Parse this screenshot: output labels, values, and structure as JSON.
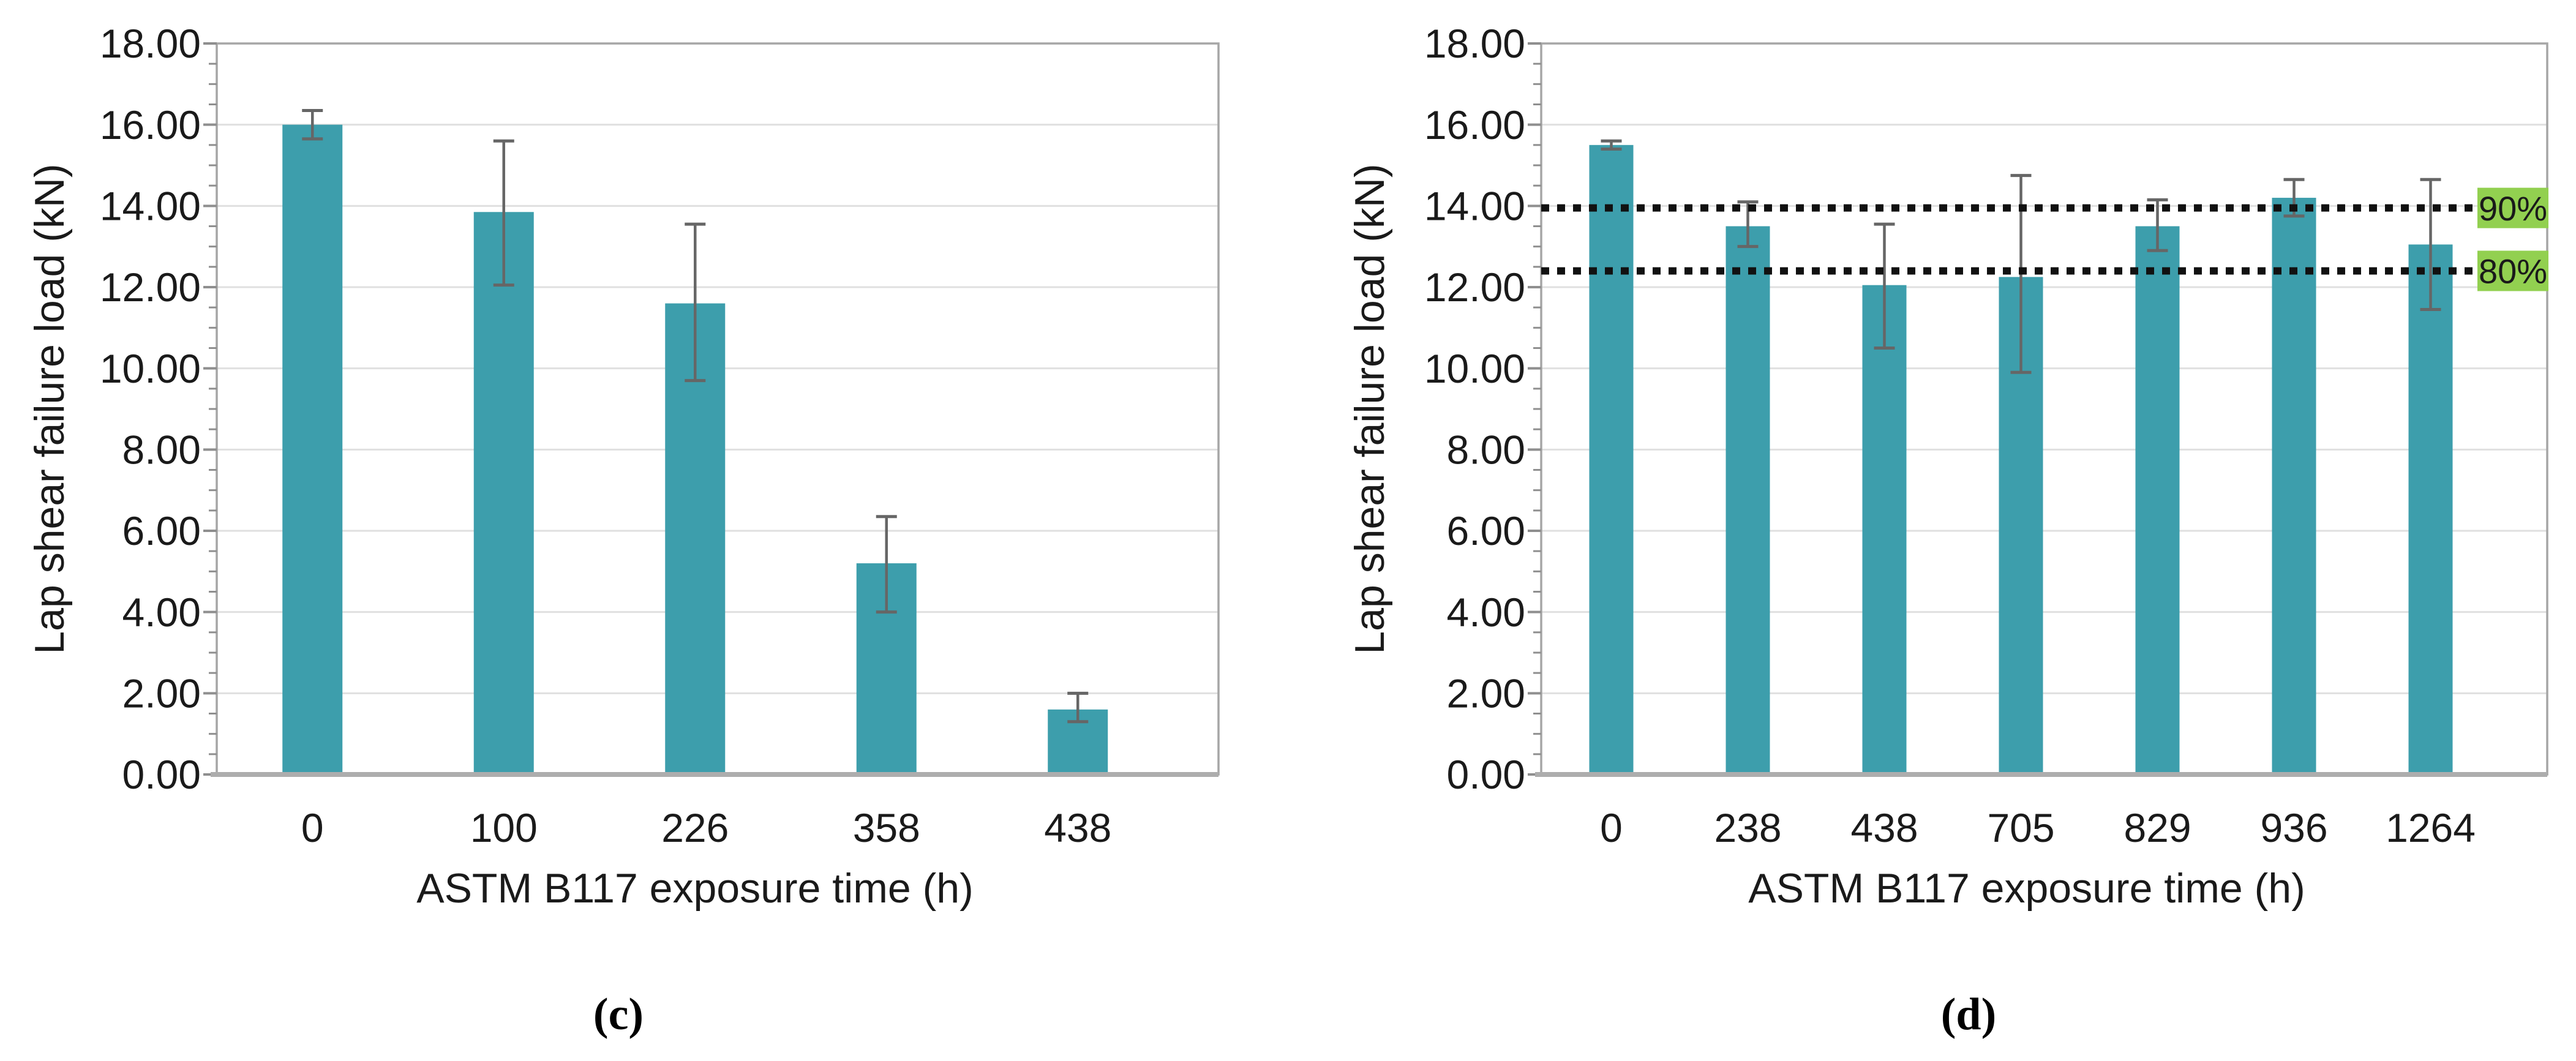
{
  "page": {
    "background": "#FFFFFF"
  },
  "colors": {
    "bar": "#3D9EAC",
    "error_bar": "#666666",
    "gridline": "#E0E0E0",
    "plot_border": "#A6A6A6",
    "axis_line": "#8F8F8F",
    "baseline": "#ADADAD",
    "reference_line": "#111111",
    "reference_label_bg": "#92D050",
    "text": "#1A1A1A"
  },
  "chart_data": [
    {
      "id": "c",
      "type": "bar",
      "caption": "(c)",
      "title": "",
      "xlabel": "ASTM B117 exposure time (h)",
      "ylabel": "Lap shear failure load (kN)",
      "ylim": [
        0,
        18
      ],
      "ytick_step": 2,
      "ytick_minor_step": 0.5,
      "ytick_labels": [
        "0.00",
        "2.00",
        "4.00",
        "6.00",
        "8.00",
        "10.00",
        "12.00",
        "14.00",
        "16.00",
        "18.00"
      ],
      "grid": true,
      "legend": "none",
      "categories": [
        "0",
        "100",
        "226",
        "358",
        "438"
      ],
      "values": [
        16.0,
        13.85,
        11.6,
        5.2,
        1.6
      ],
      "error_upper": [
        16.35,
        15.6,
        13.55,
        6.35,
        2.0
      ],
      "error_lower": [
        15.65,
        12.05,
        9.7,
        4.0,
        1.3
      ]
    },
    {
      "id": "d",
      "type": "bar",
      "caption": "(d)",
      "title": "",
      "xlabel": "ASTM B117 exposure time (h)",
      "ylabel": "Lap shear failure load (kN)",
      "ylim": [
        0,
        18
      ],
      "ytick_step": 2,
      "ytick_minor_step": 0.5,
      "ytick_labels": [
        "0.00",
        "2.00",
        "4.00",
        "6.00",
        "8.00",
        "10.00",
        "12.00",
        "14.00",
        "16.00",
        "18.00"
      ],
      "grid": true,
      "legend": "none",
      "categories": [
        "0",
        "238",
        "438",
        "705",
        "829",
        "936",
        "1264"
      ],
      "values": [
        15.5,
        13.5,
        12.05,
        12.25,
        13.5,
        14.2,
        13.05
      ],
      "error_upper": [
        15.6,
        14.1,
        13.55,
        14.75,
        14.15,
        14.65,
        14.65
      ],
      "error_lower": [
        15.4,
        13.0,
        10.5,
        9.9,
        12.9,
        13.75,
        11.45
      ],
      "reference_lines": [
        {
          "value": 13.95,
          "label": "90%"
        },
        {
          "value": 12.4,
          "label": "80%"
        }
      ]
    }
  ]
}
